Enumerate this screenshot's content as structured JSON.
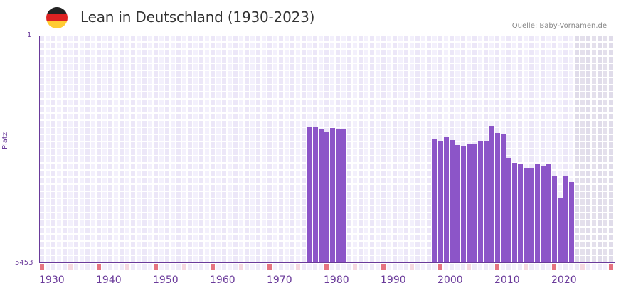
{
  "header": {
    "title": "Lean in Deutschland (1930-2023)",
    "source": "Quelle: Baby-Vornamen.de",
    "flag": {
      "name": "germany-flag-icon",
      "colors": [
        "#222222",
        "#dd2222",
        "#ffcc33"
      ]
    }
  },
  "colors": {
    "bar": "#8c55c8",
    "axis": "#6a3a9a",
    "grid_light": "#f3f0fc",
    "grid_dark": "#ece7f8",
    "future_shade": "#e4e0ec",
    "decade_marker": "#e57380",
    "half_decade_marker": "#f5d8e0"
  },
  "chart_data": {
    "type": "bar",
    "title": "Lean in Deutschland (1930-2023)",
    "xlabel": "",
    "ylabel": "Platz",
    "y_inverted": true,
    "ylim": [
      1,
      5453
    ],
    "xlim": [
      1930,
      2030
    ],
    "x_ticks": [
      1930,
      1940,
      1950,
      1960,
      1970,
      1980,
      1990,
      2000,
      2010,
      2020
    ],
    "y_ticks": [
      1,
      5453
    ],
    "grid": true,
    "legend": null,
    "x": [
      1977,
      1978,
      1979,
      1980,
      1981,
      1982,
      1983,
      1999,
      2000,
      2001,
      2002,
      2003,
      2004,
      2005,
      2006,
      2007,
      2008,
      2009,
      2010,
      2011,
      2012,
      2013,
      2014,
      2015,
      2016,
      2017,
      2018,
      2019,
      2020,
      2021,
      2022,
      2023
    ],
    "values": [
      2182,
      2199,
      2250,
      2301,
      2216,
      2250,
      2250,
      2471,
      2522,
      2420,
      2505,
      2625,
      2659,
      2608,
      2608,
      2522,
      2522,
      2165,
      2335,
      2352,
      2931,
      3051,
      3085,
      3170,
      3170,
      3068,
      3119,
      3085,
      3357,
      3903,
      3374,
      3511
    ],
    "series": [
      {
        "name": "Platz",
        "values": [
          2182,
          2199,
          2250,
          2301,
          2216,
          2250,
          2250,
          2471,
          2522,
          2420,
          2505,
          2625,
          2659,
          2608,
          2608,
          2522,
          2522,
          2165,
          2335,
          2352,
          2931,
          3051,
          3085,
          3170,
          3170,
          3068,
          3119,
          3085,
          3357,
          3903,
          3374,
          3511
        ]
      }
    ]
  },
  "axis": {
    "y_top_label": "1",
    "y_bottom_label": "5453",
    "y_title": "Platz",
    "x_labels": [
      "1930",
      "1940",
      "1950",
      "1960",
      "1970",
      "1980",
      "1990",
      "2000",
      "2010",
      "2020"
    ]
  }
}
